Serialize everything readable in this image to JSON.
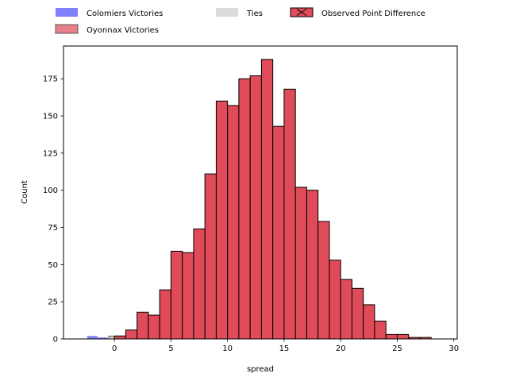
{
  "chart_data": {
    "type": "histogram",
    "xlabel": "spread",
    "ylabel": "Count",
    "xlim": [
      -4.5,
      30.3
    ],
    "ylim": [
      0,
      197
    ],
    "x_ticks": [
      0,
      5,
      10,
      15,
      20,
      25,
      30
    ],
    "y_ticks": [
      0,
      25,
      50,
      75,
      100,
      125,
      150,
      175
    ],
    "grid": false,
    "legend_position": "top",
    "bin_width": 1,
    "bins": [
      {
        "x": 0,
        "count": 2
      },
      {
        "x": 1,
        "count": 6
      },
      {
        "x": 2,
        "count": 18
      },
      {
        "x": 3,
        "count": 16
      },
      {
        "x": 4,
        "count": 33
      },
      {
        "x": 5,
        "count": 59
      },
      {
        "x": 6,
        "count": 58
      },
      {
        "x": 7,
        "count": 74
      },
      {
        "x": 8,
        "count": 111
      },
      {
        "x": 9,
        "count": 160
      },
      {
        "x": 10,
        "count": 157
      },
      {
        "x": 11,
        "count": 175
      },
      {
        "x": 12,
        "count": 177
      },
      {
        "x": 13,
        "count": 188
      },
      {
        "x": 14,
        "count": 143
      },
      {
        "x": 15,
        "count": 168
      },
      {
        "x": 16,
        "count": 102
      },
      {
        "x": 17,
        "count": 100
      },
      {
        "x": 18,
        "count": 79
      },
      {
        "x": 19,
        "count": 53
      },
      {
        "x": 20,
        "count": 40
      },
      {
        "x": 21,
        "count": 34
      },
      {
        "x": 22,
        "count": 23
      },
      {
        "x": 23,
        "count": 12
      },
      {
        "x": 24,
        "count": 3
      },
      {
        "x": 25,
        "count": 3
      },
      {
        "x": 26,
        "count": 1
      },
      {
        "x": 27,
        "count": 1
      }
    ],
    "colomiers_bins": [
      {
        "x": -2.4,
        "width": 0.9,
        "count": 2
      },
      {
        "x": -1.5,
        "width": 0.9,
        "count": 1
      }
    ],
    "tie_bins": [
      {
        "x": -0.5,
        "width": 0.9,
        "count": 2
      }
    ],
    "legend": [
      {
        "label": "Colomiers Victories",
        "color": "#8080ff",
        "style": "plain"
      },
      {
        "label": "Oyonnax Victories",
        "color": "#e8808a",
        "style": "outlined"
      },
      {
        "label": "Ties",
        "color": "#dcdcdc",
        "style": "plain"
      },
      {
        "label": "Observed Point Difference",
        "color": "#e04b5a",
        "style": "crossed"
      }
    ],
    "colors": {
      "oyonnax_bar": "#e04b5a",
      "colomiers_bar": "#6a6af0",
      "tie_bar": "#d8d8d8",
      "bar_edge": "#000000"
    }
  }
}
